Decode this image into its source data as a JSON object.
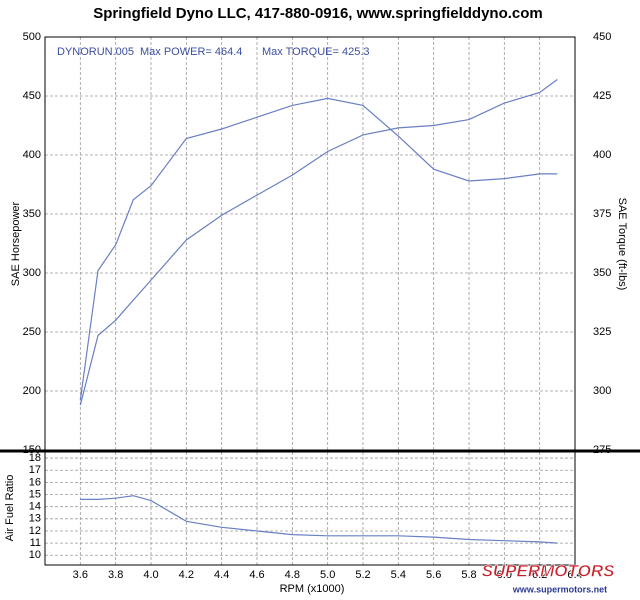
{
  "chart_data": [
    {
      "type": "line",
      "title": "Springfield Dyno LLC, 417-880-0916, www.springfielddyno.com",
      "annotations": [
        "DYNORUN.005",
        "Max POWER= 464.4",
        "Max TORQUE= 425.3"
      ],
      "ylabel": "SAE Horsepower",
      "y2label": "SAE Torque (ft-lbs)",
      "x": [
        3.6,
        3.7,
        3.8,
        3.9,
        4.0,
        4.2,
        4.4,
        4.6,
        4.8,
        5.0,
        5.2,
        5.4,
        5.6,
        5.8,
        6.0,
        6.2,
        6.3
      ],
      "series": [
        {
          "color": "#6a7fc4",
          "values": [
            188,
            247,
            260,
            277,
            294,
            328,
            349,
            366,
            383,
            403,
            417,
            423,
            425,
            430,
            444,
            453,
            464
          ]
        },
        {
          "color": "#6a7fc4",
          "axis": "y2",
          "values": [
            296,
            351,
            362,
            381,
            387,
            407,
            411,
            416,
            421,
            424,
            421,
            408,
            394,
            389,
            390,
            392,
            392
          ]
        }
      ],
      "xlim": [
        3.4,
        6.4
      ],
      "xticks": [
        3.6,
        3.8,
        4.0,
        4.2,
        4.4,
        4.6,
        4.8,
        5.0,
        5.2,
        5.4,
        5.6,
        5.8,
        6.0,
        6.2,
        6.4
      ],
      "ylim": [
        150,
        500
      ],
      "yticks": [
        150,
        200,
        250,
        300,
        350,
        400,
        450,
        500
      ],
      "y2lim": [
        275,
        450
      ],
      "y2ticks": [
        275,
        300,
        325,
        350,
        375,
        400,
        425,
        450
      ],
      "grid": true
    },
    {
      "type": "line",
      "ylabel": "Air Fuel Ratio",
      "xlabel": "RPM (x1000)",
      "x": [
        3.6,
        3.7,
        3.8,
        3.9,
        4.0,
        4.2,
        4.4,
        4.6,
        4.8,
        5.0,
        5.2,
        5.4,
        5.6,
        5.8,
        6.0,
        6.2,
        6.3
      ],
      "series": [
        {
          "color": "#6a7fc4",
          "values": [
            14.6,
            14.6,
            14.7,
            14.9,
            14.5,
            12.8,
            12.3,
            12.0,
            11.7,
            11.6,
            11.6,
            11.6,
            11.5,
            11.3,
            11.2,
            11.1,
            11.0
          ]
        }
      ],
      "xlim": [
        3.4,
        6.4
      ],
      "xticks": [
        {
          "value": 3.6,
          "label": "3.6"
        },
        {
          "value": 3.8,
          "label": "3.8"
        },
        {
          "value": 4.0,
          "label": "4.0"
        },
        {
          "value": 4.2,
          "label": "4.2"
        },
        {
          "value": 4.4,
          "label": "4.4"
        },
        {
          "value": 4.6,
          "label": "4.6"
        },
        {
          "value": 4.8,
          "label": "4.8"
        },
        {
          "value": 5.0,
          "label": "5.0"
        },
        {
          "value": 5.2,
          "label": "5.2"
        },
        {
          "value": 5.4,
          "label": "5.4"
        },
        {
          "value": 5.6,
          "label": "5.6"
        },
        {
          "value": 5.8,
          "label": "5.8"
        },
        {
          "value": 6.0,
          "label": "6.0"
        },
        {
          "value": 6.2,
          "label": "6.2"
        },
        {
          "value": 6.4,
          "label": "6.4"
        }
      ],
      "ylim": [
        9.2,
        18.5
      ],
      "yticks": [
        10,
        11,
        12,
        13,
        14,
        15,
        16,
        17,
        18
      ],
      "grid": true,
      "watermark": [
        "SUPERMOTORS",
        "www.supermotors.net"
      ]
    }
  ]
}
